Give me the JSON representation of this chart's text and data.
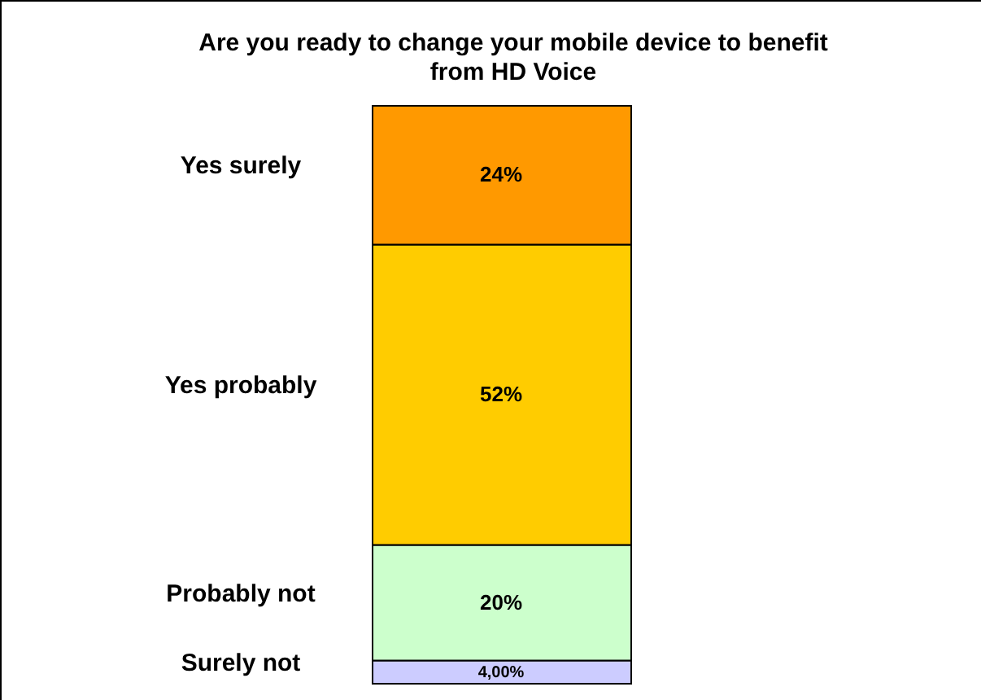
{
  "chart_data": {
    "type": "bar",
    "stacked": true,
    "title": "Are you ready to change your mobile device to benefit from HD Voice",
    "categories": [
      null
    ],
    "legend": false,
    "ylim": [
      0,
      100
    ],
    "tick_labels": false,
    "series": [
      {
        "name": "Surely not",
        "color": "#ccccff",
        "values": [
          4.0
        ],
        "value_labels": [
          "4,00%"
        ]
      },
      {
        "name": "Probably not",
        "color": "#ccffcc",
        "values": [
          20
        ],
        "value_labels": [
          "20%"
        ]
      },
      {
        "name": "Yes probably",
        "color": "#ffcc00",
        "values": [
          52
        ],
        "value_labels": [
          "52%"
        ]
      },
      {
        "name": "Yes surely",
        "color": "#ff9900",
        "values": [
          24
        ],
        "value_labels": [
          "24%"
        ]
      }
    ]
  }
}
